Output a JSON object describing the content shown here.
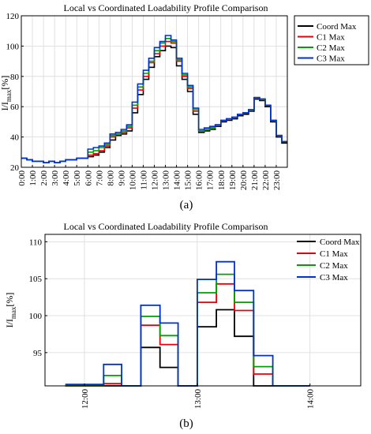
{
  "chart_data": [
    {
      "type": "line",
      "step": true,
      "panel_label": "(a)",
      "title": "Local vs Coordinated Loadability Profile Comparison",
      "ylabel": "I/I",
      "ylabel_sub": "max",
      "ylabel_unit": "[%]",
      "xlabel": "",
      "ylim": [
        20,
        120
      ],
      "yticks": [
        20,
        40,
        60,
        80,
        100,
        120
      ],
      "xticks": [
        "0:00",
        "1:00",
        "2:00",
        "3:00",
        "4:00",
        "5:00",
        "6:00",
        "7:00",
        "8:00",
        "9:00",
        "10:00",
        "11:00",
        "12:00",
        "13:00",
        "14:00",
        "15:00",
        "16:00",
        "17:00",
        "18:00",
        "19:00",
        "20:00",
        "21:00",
        "22:00",
        "23:00"
      ],
      "x_hours": [
        0,
        0.5,
        1,
        1.5,
        2,
        2.5,
        3,
        3.5,
        4,
        4.5,
        5,
        5.5,
        6,
        6.5,
        7,
        7.5,
        8,
        8.5,
        9,
        9.5,
        10,
        10.5,
        11,
        11.5,
        12,
        12.5,
        13,
        13.5,
        14,
        14.5,
        15,
        15.5,
        16,
        16.5,
        17,
        17.5,
        18,
        18.5,
        19,
        19.5,
        20,
        20.5,
        21,
        21.5,
        22,
        22.5,
        23,
        23.5
      ],
      "grid": true,
      "legend_position": "outside-right",
      "series": [
        {
          "name": "Coord Max",
          "color": "#000000",
          "values": [
            26,
            25,
            24,
            24,
            23,
            24,
            23,
            24,
            25,
            25,
            26,
            26,
            27,
            28,
            30,
            33,
            38,
            41,
            42,
            44,
            56,
            68,
            78,
            86,
            93,
            97,
            100,
            99,
            87,
            78,
            70,
            55,
            43,
            44,
            45,
            47,
            50,
            51,
            52,
            54,
            55,
            57,
            65,
            64,
            60,
            50,
            40,
            36
          ]
        },
        {
          "name": "C1 Max",
          "color": "#e8000b",
          "values": [
            26,
            25,
            24,
            24,
            23,
            24,
            23,
            24,
            25,
            25,
            26,
            26,
            28,
            29,
            31,
            34,
            40,
            42,
            43,
            46,
            59,
            71,
            80,
            89,
            95,
            100,
            103,
            102,
            90,
            80,
            72,
            57,
            44,
            45,
            46,
            48,
            51,
            52,
            53,
            55,
            56,
            58,
            66,
            65,
            61,
            51,
            41,
            37
          ]
        },
        {
          "name": "C2 Max",
          "color": "#00a000",
          "values": [
            26,
            25,
            24,
            24,
            23,
            24,
            23,
            24,
            25,
            25,
            26,
            26,
            30,
            31,
            33,
            35,
            41,
            42,
            44,
            47,
            61,
            73,
            82,
            90,
            97,
            102,
            105,
            103,
            91,
            81,
            73,
            58,
            44,
            45,
            46,
            48,
            51,
            52,
            53,
            55,
            56,
            58,
            66,
            65,
            61,
            51,
            41,
            37
          ]
        },
        {
          "name": "C3 Max",
          "color": "#0033cc",
          "values": [
            26,
            25,
            24,
            24,
            23,
            24,
            23,
            24,
            25,
            25,
            26,
            26,
            32,
            33,
            34,
            36,
            42,
            43,
            45,
            48,
            63,
            75,
            84,
            92,
            99,
            103,
            107,
            104,
            92,
            82,
            74,
            59,
            45,
            46,
            47,
            48,
            51,
            52,
            53,
            55,
            56,
            58,
            66,
            65,
            61,
            51,
            41,
            37
          ]
        }
      ]
    },
    {
      "type": "line",
      "step": true,
      "panel_label": "(b)",
      "title": "Local vs Coordinated Loadability Profile Comparison",
      "ylabel": "I/I",
      "ylabel_sub": "max",
      "ylabel_unit": "[%]",
      "xlabel": "",
      "xlim": [
        11.65,
        14.45
      ],
      "ylim": [
        90.5,
        111
      ],
      "yticks": [
        95,
        100,
        105,
        110
      ],
      "xticks": [
        "12:00",
        "13:00",
        "14:00"
      ],
      "xtick_hours": [
        12,
        13,
        14
      ],
      "grid": true,
      "legend_position": "top-right",
      "step_edges": [
        11.83,
        12.17,
        12.33,
        12.5,
        12.67,
        12.83,
        13.0,
        13.17,
        13.33,
        13.5,
        13.67,
        13.83,
        14.0
      ],
      "series": [
        {
          "name": "Coord Max",
          "color": "#000000",
          "values": [
            null,
            90.4,
            90.4,
            95.7,
            93.0,
            null,
            98.5,
            100.8,
            97.2,
            null,
            null,
            null
          ]
        },
        {
          "name": "C1 Max",
          "color": "#e8000b",
          "values": [
            null,
            90.8,
            null,
            98.7,
            96.1,
            null,
            101.8,
            104.3,
            100.7,
            92.1,
            null,
            null
          ]
        },
        {
          "name": "C2 Max",
          "color": "#00a000",
          "values": [
            null,
            91.9,
            null,
            99.9,
            97.3,
            null,
            103.1,
            105.6,
            101.8,
            93.1,
            null,
            null
          ]
        },
        {
          "name": "C3 Max",
          "color": "#0033cc",
          "values": [
            90.7,
            93.4,
            null,
            101.4,
            99.0,
            null,
            104.9,
            107.3,
            103.4,
            94.6,
            null,
            null
          ]
        }
      ]
    }
  ]
}
